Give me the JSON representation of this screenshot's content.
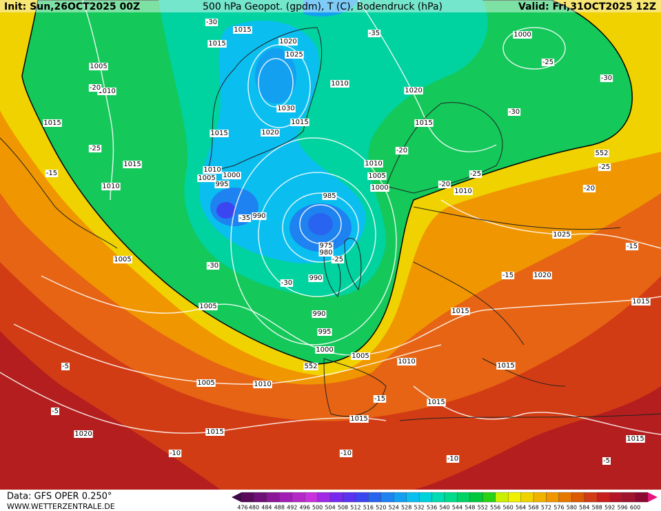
{
  "header": {
    "init": "Init: Sun,26OCT2025 00Z",
    "title": "500 hPa Geopot. (gpdm), T (C), Bodendruck (hPa)",
    "valid": "Valid: Fri,31OCT2025 12Z"
  },
  "footer": {
    "data": "Data: GFS OPER 0.250°",
    "site": "WWW.WETTERZENTRALE.DE"
  },
  "legend": {
    "labels": [
      "476",
      "480",
      "484",
      "488",
      "492",
      "496",
      "500",
      "504",
      "508",
      "512",
      "516",
      "520",
      "524",
      "528",
      "532",
      "536",
      "540",
      "544",
      "548",
      "552",
      "556",
      "560",
      "564",
      "568",
      "572",
      "576",
      "580",
      "584",
      "588",
      "592",
      "596",
      "600"
    ],
    "colors": [
      "#5a0a5a",
      "#6e1078",
      "#8c1496",
      "#a01eb4",
      "#b428c8",
      "#c832dc",
      "#a028e6",
      "#7828f0",
      "#5a32f0",
      "#3c46f0",
      "#2864f0",
      "#1e82f0",
      "#14a0f0",
      "#0abef0",
      "#00d2dc",
      "#00dcb4",
      "#00dc8c",
      "#00d264",
      "#00c83c",
      "#28d214",
      "#c8f000",
      "#f0f000",
      "#f0d200",
      "#f0b400",
      "#f09600",
      "#e67800",
      "#dc5a00",
      "#d23c14",
      "#c81e1e",
      "#b41428",
      "#a0142d",
      "#8c0a32"
    ]
  },
  "map_labels": [
    "1015",
    "1015",
    "1020",
    "1025",
    "1005",
    "1010",
    "1000",
    "-25",
    "-30",
    "1010",
    "1020",
    "1030",
    "1015",
    "1020",
    "1015",
    "1015",
    "-25",
    "1015",
    "1010",
    "1000",
    "1005",
    "995",
    "1010",
    "1010",
    "1005",
    "1000",
    "985",
    "990",
    "-35",
    "975",
    "980",
    "-25",
    "-30",
    "1005",
    "990",
    "-30",
    "1005",
    "990",
    "995",
    "1000",
    "1005",
    "552",
    "1010",
    "1005",
    "1010",
    "-15",
    "1015",
    "1015",
    "1015",
    "1020",
    "-10",
    "-10",
    "-10",
    "-5",
    "1015",
    "1015",
    "1015",
    "1015",
    "1020",
    "-15",
    "1025",
    "-15",
    "-20",
    "1010",
    "-20",
    "-25",
    "-25",
    "552",
    "-30",
    "1015",
    "-20",
    "-35",
    "-30",
    "-20",
    "-15",
    "-5",
    "-5"
  ]
}
